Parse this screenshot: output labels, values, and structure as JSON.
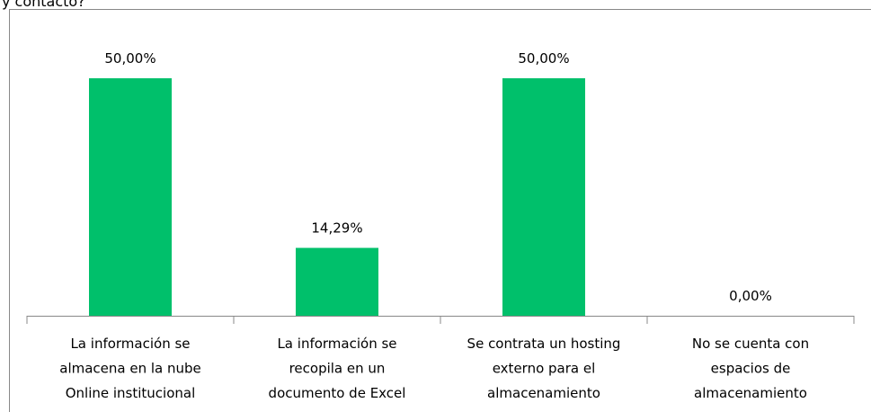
{
  "chart_data": {
    "type": "bar",
    "title": "y contacto?",
    "categories": [
      "La información se\nalmacena en la nube\nOnline institucional",
      "La información se\nrecopila en un\ndocumento de Excel",
      "Se contrata un hosting\nexterno para el\nalmacenamiento",
      "No se cuenta con\nespacios de\nalmacenamiento"
    ],
    "values": [
      50,
      14.29,
      50,
      0
    ],
    "value_labels": [
      "50,00%",
      "14,29%",
      "50,00%",
      "0,00%"
    ],
    "color": "#00c06b"
  }
}
